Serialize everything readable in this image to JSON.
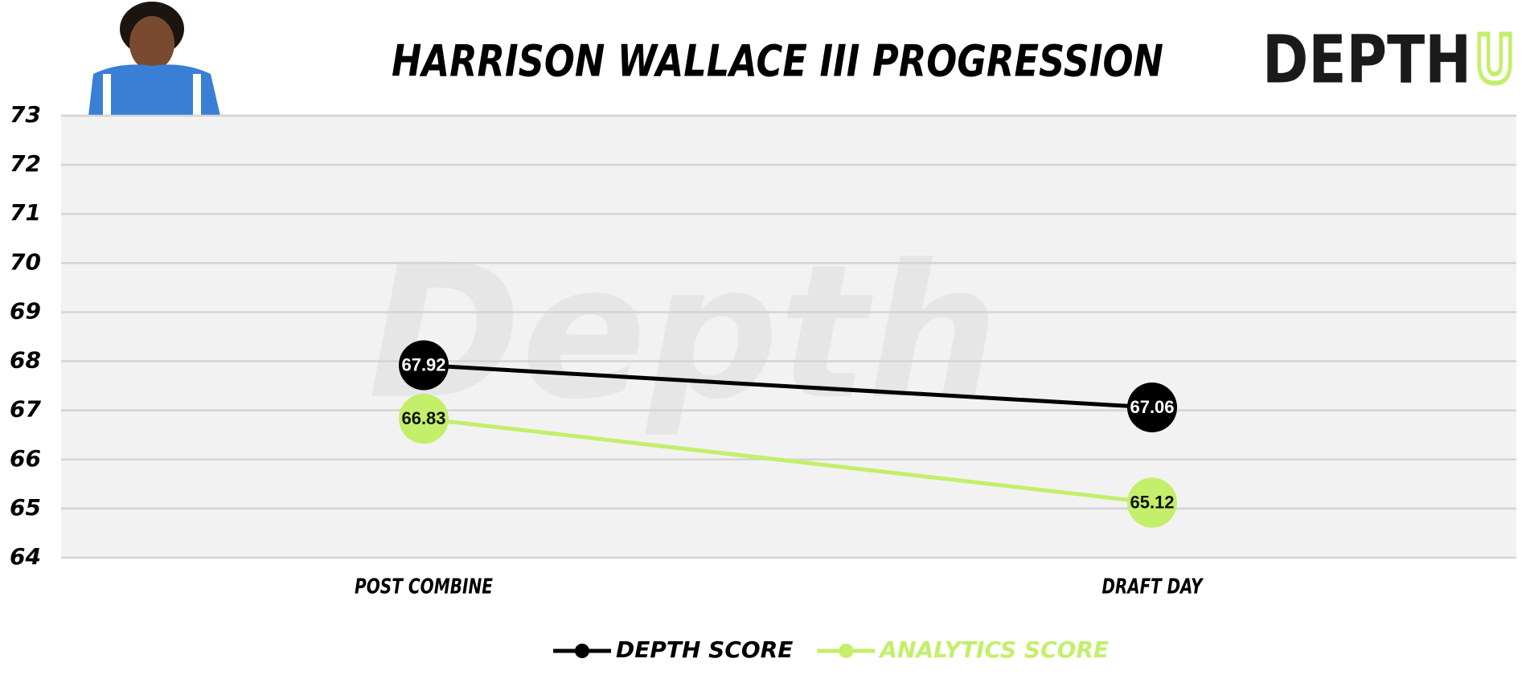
{
  "chart_data": {
    "type": "line",
    "title": "HARRISON WALLACE III PROGRESSION",
    "logo": {
      "main": "DEPTH",
      "accent": "U"
    },
    "watermark": "Depth",
    "categories": [
      "POST COMBINE",
      "DRAFT DAY"
    ],
    "series": [
      {
        "name": "DEPTH SCORE",
        "color": "#000000",
        "label_color": "#ffffff",
        "values": [
          67.92,
          67.06
        ]
      },
      {
        "name": "ANALYTICS SCORE",
        "color": "#c3ef6a",
        "label_color": "#111111",
        "values": [
          66.83,
          65.12
        ]
      }
    ],
    "ylim": [
      64,
      73
    ],
    "yticks": [
      64,
      65,
      66,
      67,
      68,
      69,
      70,
      71,
      72,
      73
    ],
    "grid": true,
    "plot_background": "#f2f2f2",
    "legend": "bottom"
  }
}
